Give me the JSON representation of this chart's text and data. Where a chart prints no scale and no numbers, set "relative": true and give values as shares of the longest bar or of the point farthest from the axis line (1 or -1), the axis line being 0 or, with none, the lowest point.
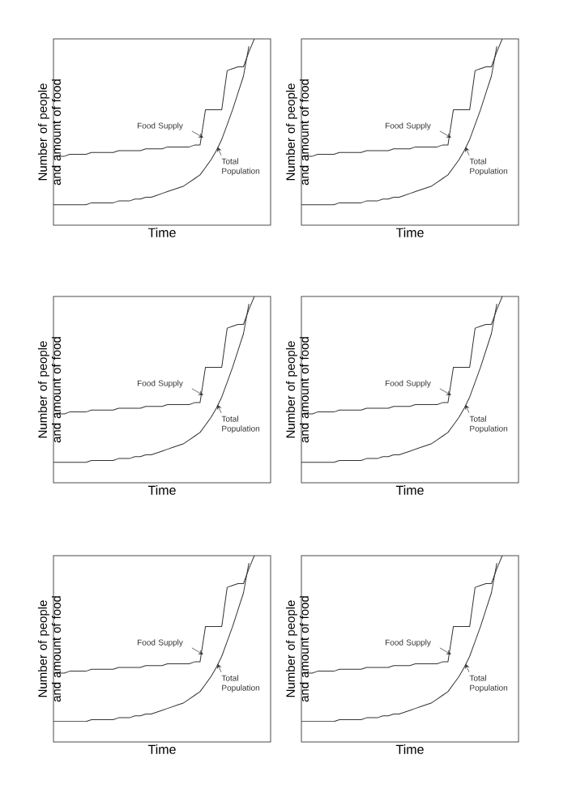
{
  "chart_data": [
    {
      "type": "line",
      "relative": true,
      "xlabel": "Time",
      "ylabel": "Number of people and amount of food",
      "categories": [
        null,
        null,
        null,
        null,
        null,
        null,
        null,
        null,
        null,
        null,
        null,
        null,
        null,
        null,
        null,
        null,
        null,
        null,
        null,
        null,
        null,
        null,
        null,
        null,
        null,
        null,
        null,
        null,
        null,
        null,
        null,
        null,
        null,
        null,
        null,
        null,
        null,
        null,
        null,
        null,
        null
      ],
      "series": [
        {
          "name": "Food Supply",
          "color": "#333333",
          "values": [
            0.37,
            0.37,
            0.37,
            0.38,
            0.38,
            0.38,
            0.38,
            0.39,
            0.39,
            0.39,
            0.39,
            0.39,
            0.4,
            0.4,
            0.4,
            0.4,
            0.4,
            0.41,
            0.41,
            0.41,
            0.41,
            0.42,
            0.42,
            0.42,
            0.42,
            0.42,
            0.43,
            0.43,
            0.62,
            0.62,
            0.62,
            0.62,
            0.83,
            0.84,
            0.85,
            0.85,
            0.93,
            1.0,
            null,
            null,
            null
          ]
        },
        {
          "name": "Total Population",
          "color": "#333333",
          "values": [
            0.11,
            0.11,
            0.11,
            0.11,
            0.11,
            0.11,
            0.11,
            0.12,
            0.12,
            0.12,
            0.12,
            0.12,
            0.13,
            0.13,
            0.13,
            0.14,
            0.14,
            0.15,
            0.15,
            0.16,
            0.17,
            0.18,
            0.19,
            0.2,
            0.21,
            0.23,
            0.25,
            0.27,
            0.31,
            0.35,
            0.4,
            0.46,
            0.54,
            0.62,
            0.71,
            0.8,
            0.96,
            null,
            null,
            null,
            null
          ]
        }
      ]
    },
    {
      "type": "line",
      "relative": true,
      "xlabel": "Time",
      "ylabel": "Number of people and amount of food",
      "categories": [
        null,
        null,
        null,
        null,
        null,
        null,
        null,
        null,
        null,
        null,
        null,
        null,
        null,
        null,
        null,
        null,
        null,
        null,
        null,
        null,
        null,
        null,
        null,
        null,
        null,
        null,
        null,
        null,
        null,
        null,
        null,
        null,
        null,
        null,
        null,
        null,
        null,
        null,
        null,
        null,
        null
      ],
      "series": [
        {
          "name": "Food Supply",
          "color": "#333333",
          "values": [
            0.37,
            0.37,
            0.37,
            0.38,
            0.38,
            0.38,
            0.38,
            0.39,
            0.39,
            0.39,
            0.39,
            0.39,
            0.4,
            0.4,
            0.4,
            0.4,
            0.4,
            0.41,
            0.41,
            0.41,
            0.41,
            0.42,
            0.42,
            0.42,
            0.42,
            0.42,
            0.43,
            0.43,
            0.62,
            0.62,
            0.62,
            0.62,
            0.83,
            0.84,
            0.85,
            0.85,
            0.93,
            1.0,
            null,
            null,
            null
          ]
        },
        {
          "name": "Total Population",
          "color": "#333333",
          "values": [
            0.11,
            0.11,
            0.11,
            0.11,
            0.11,
            0.11,
            0.11,
            0.12,
            0.12,
            0.12,
            0.12,
            0.12,
            0.13,
            0.13,
            0.13,
            0.14,
            0.14,
            0.15,
            0.15,
            0.16,
            0.17,
            0.18,
            0.19,
            0.2,
            0.21,
            0.23,
            0.25,
            0.27,
            0.31,
            0.35,
            0.4,
            0.46,
            0.54,
            0.62,
            0.71,
            0.8,
            0.96,
            null,
            null,
            null,
            null
          ]
        }
      ]
    },
    {
      "type": "line",
      "relative": true,
      "xlabel": "Time",
      "ylabel": "Number of people and amount of food",
      "categories": [
        null,
        null,
        null,
        null,
        null,
        null,
        null,
        null,
        null,
        null,
        null,
        null,
        null,
        null,
        null,
        null,
        null,
        null,
        null,
        null,
        null,
        null,
        null,
        null,
        null,
        null,
        null,
        null,
        null,
        null,
        null,
        null,
        null,
        null,
        null,
        null,
        null,
        null,
        null,
        null,
        null
      ],
      "series": [
        {
          "name": "Food Supply",
          "color": "#333333",
          "values": [
            0.37,
            0.37,
            0.37,
            0.38,
            0.38,
            0.38,
            0.38,
            0.39,
            0.39,
            0.39,
            0.39,
            0.39,
            0.4,
            0.4,
            0.4,
            0.4,
            0.4,
            0.41,
            0.41,
            0.41,
            0.41,
            0.42,
            0.42,
            0.42,
            0.42,
            0.42,
            0.43,
            0.43,
            0.62,
            0.62,
            0.62,
            0.62,
            0.83,
            0.84,
            0.85,
            0.85,
            0.93,
            1.0,
            null,
            null,
            null
          ]
        },
        {
          "name": "Total Population",
          "color": "#333333",
          "values": [
            0.11,
            0.11,
            0.11,
            0.11,
            0.11,
            0.11,
            0.11,
            0.12,
            0.12,
            0.12,
            0.12,
            0.12,
            0.13,
            0.13,
            0.13,
            0.14,
            0.14,
            0.15,
            0.15,
            0.16,
            0.17,
            0.18,
            0.19,
            0.2,
            0.21,
            0.23,
            0.25,
            0.27,
            0.31,
            0.35,
            0.4,
            0.46,
            0.54,
            0.62,
            0.71,
            0.8,
            0.96,
            null,
            null,
            null,
            null
          ]
        }
      ]
    },
    {
      "type": "line",
      "relative": true,
      "xlabel": "Time",
      "ylabel": "Number of people and amount of food",
      "categories": [
        null,
        null,
        null,
        null,
        null,
        null,
        null,
        null,
        null,
        null,
        null,
        null,
        null,
        null,
        null,
        null,
        null,
        null,
        null,
        null,
        null,
        null,
        null,
        null,
        null,
        null,
        null,
        null,
        null,
        null,
        null,
        null,
        null,
        null,
        null,
        null,
        null,
        null,
        null,
        null,
        null
      ],
      "series": [
        {
          "name": "Food Supply",
          "color": "#333333",
          "values": [
            0.37,
            0.37,
            0.37,
            0.38,
            0.38,
            0.38,
            0.38,
            0.39,
            0.39,
            0.39,
            0.39,
            0.39,
            0.4,
            0.4,
            0.4,
            0.4,
            0.4,
            0.41,
            0.41,
            0.41,
            0.41,
            0.42,
            0.42,
            0.42,
            0.42,
            0.42,
            0.43,
            0.43,
            0.62,
            0.62,
            0.62,
            0.62,
            0.83,
            0.84,
            0.85,
            0.85,
            0.93,
            1.0,
            null,
            null,
            null
          ]
        },
        {
          "name": "Total Population",
          "color": "#333333",
          "values": [
            0.11,
            0.11,
            0.11,
            0.11,
            0.11,
            0.11,
            0.11,
            0.12,
            0.12,
            0.12,
            0.12,
            0.12,
            0.13,
            0.13,
            0.13,
            0.14,
            0.14,
            0.15,
            0.15,
            0.16,
            0.17,
            0.18,
            0.19,
            0.2,
            0.21,
            0.23,
            0.25,
            0.27,
            0.31,
            0.35,
            0.4,
            0.46,
            0.54,
            0.62,
            0.71,
            0.8,
            0.96,
            null,
            null,
            null,
            null
          ]
        }
      ]
    },
    {
      "type": "line",
      "relative": true,
      "xlabel": "Time",
      "ylabel": "Number of people and amount of food",
      "categories": [
        null,
        null,
        null,
        null,
        null,
        null,
        null,
        null,
        null,
        null,
        null,
        null,
        null,
        null,
        null,
        null,
        null,
        null,
        null,
        null,
        null,
        null,
        null,
        null,
        null,
        null,
        null,
        null,
        null,
        null,
        null,
        null,
        null,
        null,
        null,
        null,
        null,
        null,
        null,
        null,
        null
      ],
      "series": [
        {
          "name": "Food Supply",
          "color": "#333333",
          "values": [
            0.37,
            0.37,
            0.37,
            0.38,
            0.38,
            0.38,
            0.38,
            0.39,
            0.39,
            0.39,
            0.39,
            0.39,
            0.4,
            0.4,
            0.4,
            0.4,
            0.4,
            0.41,
            0.41,
            0.41,
            0.41,
            0.42,
            0.42,
            0.42,
            0.42,
            0.42,
            0.43,
            0.43,
            0.62,
            0.62,
            0.62,
            0.62,
            0.83,
            0.84,
            0.85,
            0.85,
            0.93,
            1.0,
            null,
            null,
            null
          ]
        },
        {
          "name": "Total Population",
          "color": "#333333",
          "values": [
            0.11,
            0.11,
            0.11,
            0.11,
            0.11,
            0.11,
            0.11,
            0.12,
            0.12,
            0.12,
            0.12,
            0.12,
            0.13,
            0.13,
            0.13,
            0.14,
            0.14,
            0.15,
            0.15,
            0.16,
            0.17,
            0.18,
            0.19,
            0.2,
            0.21,
            0.23,
            0.25,
            0.27,
            0.31,
            0.35,
            0.4,
            0.46,
            0.54,
            0.62,
            0.71,
            0.8,
            0.96,
            null,
            null,
            null,
            null
          ]
        }
      ]
    },
    {
      "type": "line",
      "relative": true,
      "xlabel": "Time",
      "ylabel": "Number of people and amount of food",
      "categories": [
        null,
        null,
        null,
        null,
        null,
        null,
        null,
        null,
        null,
        null,
        null,
        null,
        null,
        null,
        null,
        null,
        null,
        null,
        null,
        null,
        null,
        null,
        null,
        null,
        null,
        null,
        null,
        null,
        null,
        null,
        null,
        null,
        null,
        null,
        null,
        null,
        null,
        null,
        null,
        null,
        null
      ],
      "series": [
        {
          "name": "Food Supply",
          "color": "#333333",
          "values": [
            0.37,
            0.37,
            0.37,
            0.38,
            0.38,
            0.38,
            0.38,
            0.39,
            0.39,
            0.39,
            0.39,
            0.39,
            0.4,
            0.4,
            0.4,
            0.4,
            0.4,
            0.41,
            0.41,
            0.41,
            0.41,
            0.42,
            0.42,
            0.42,
            0.42,
            0.42,
            0.43,
            0.43,
            0.62,
            0.62,
            0.62,
            0.62,
            0.83,
            0.84,
            0.85,
            0.85,
            0.93,
            1.0,
            null,
            null,
            null
          ]
        },
        {
          "name": "Total Population",
          "color": "#333333",
          "values": [
            0.11,
            0.11,
            0.11,
            0.11,
            0.11,
            0.11,
            0.11,
            0.12,
            0.12,
            0.12,
            0.12,
            0.12,
            0.13,
            0.13,
            0.13,
            0.14,
            0.14,
            0.15,
            0.15,
            0.16,
            0.17,
            0.18,
            0.19,
            0.2,
            0.21,
            0.23,
            0.25,
            0.27,
            0.31,
            0.35,
            0.4,
            0.46,
            0.54,
            0.62,
            0.71,
            0.8,
            0.96,
            null,
            null,
            null,
            null
          ]
        }
      ]
    }
  ]
}
